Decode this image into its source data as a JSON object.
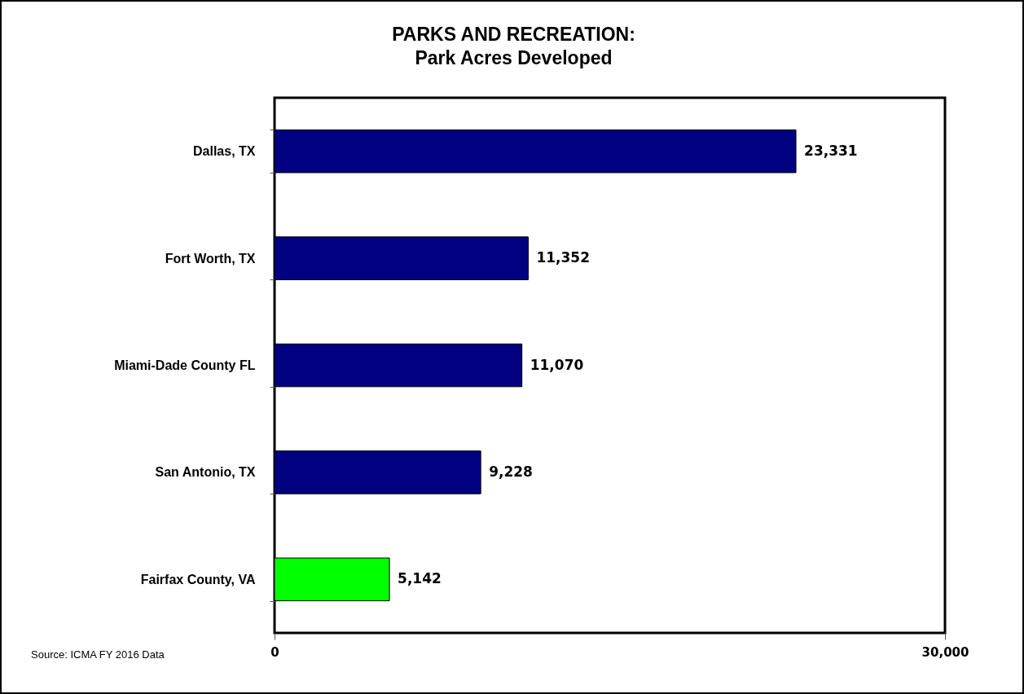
{
  "chart_data": {
    "type": "bar",
    "orientation": "horizontal",
    "title": "PARKS AND RECREATION:",
    "subtitle": "Park Acres Developed",
    "categories": [
      "Dallas, TX",
      "Fort Worth, TX",
      "Miami-Dade County FL",
      "San Antonio, TX",
      "Fairfax County, VA"
    ],
    "values": [
      23331,
      11352,
      11070,
      9228,
      5142
    ],
    "colors": [
      "#000080",
      "#000080",
      "#000080",
      "#000080",
      "#00ff00"
    ],
    "value_labels": [
      "23,331",
      "11,352",
      "11,070",
      "9,228",
      "5,142"
    ],
    "xlim": [
      0,
      30000
    ],
    "xticks": [
      0,
      {
        "value": 30000,
        "label": "30,000"
      }
    ],
    "annotations": [
      "Source: ICMA FY 2016 Data"
    ]
  }
}
